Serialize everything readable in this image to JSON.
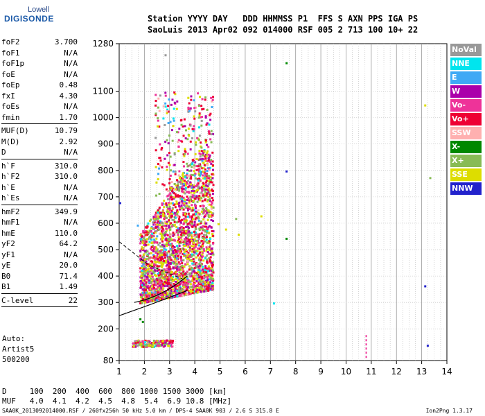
{
  "logo": {
    "top": "Lowell",
    "main": "DIGISONDE"
  },
  "header": {
    "row1": [
      "Station",
      "YYYY",
      "DAY",
      "DDD",
      "HHMMSS",
      "P1",
      "FFS",
      "S",
      "AXN",
      "PPS",
      "IGA",
      "PS"
    ],
    "row2": [
      "SaoLuis",
      "2013",
      "Apr02",
      "092",
      "014000",
      "RSF",
      "005",
      "2",
      "713",
      "100",
      "10+",
      "22"
    ]
  },
  "params": [
    {
      "k": "foF2",
      "v": "3.700"
    },
    {
      "k": "foF1",
      "v": "N/A"
    },
    {
      "k": "foF1p",
      "v": "N/A"
    },
    {
      "k": "foE",
      "v": "N/A"
    },
    {
      "k": "foEp",
      "v": "0.48"
    },
    {
      "k": "fxI",
      "v": "4.30"
    },
    {
      "k": "foEs",
      "v": "N/A"
    },
    {
      "k": "fmin",
      "v": "1.70"
    },
    {
      "sep": true
    },
    {
      "k": "MUF(D)",
      "v": "10.79"
    },
    {
      "k": "M(D)",
      "v": "2.92"
    },
    {
      "k": "D",
      "v": "N/A"
    },
    {
      "sep": true
    },
    {
      "k": "h`F",
      "v": "310.0"
    },
    {
      "k": "h`F2",
      "v": "310.0"
    },
    {
      "k": "h`E",
      "v": "N/A"
    },
    {
      "k": "h`Es",
      "v": "N/A"
    },
    {
      "sep": true
    },
    {
      "k": "hmF2",
      "v": "349.9"
    },
    {
      "k": "hmF1",
      "v": "N/A"
    },
    {
      "k": "hmE",
      "v": "110.0"
    },
    {
      "k": "yF2",
      "v": "64.2"
    },
    {
      "k": "yF1",
      "v": "N/A"
    },
    {
      "k": "yE",
      "v": "20.0"
    },
    {
      "k": "B0",
      "v": "71.4"
    },
    {
      "k": "B1",
      "v": "1.49"
    },
    {
      "sep": true
    },
    {
      "k": "C-level",
      "v": "22"
    },
    {
      "sep": true
    }
  ],
  "auto": {
    "line1": "Auto:",
    "line2": "Artist5",
    "line3": "500200"
  },
  "legend": [
    {
      "label": "NoVal",
      "color": "#999999"
    },
    {
      "label": "NNE",
      "color": "#00e5ee"
    },
    {
      "label": "E",
      "color": "#3fa9f5"
    },
    {
      "label": "W",
      "color": "#aa00aa"
    },
    {
      "label": "Vo-",
      "color": "#ee3399"
    },
    {
      "label": "Vo+",
      "color": "#ee0033"
    },
    {
      "label": "SSW",
      "color": "#ffb0b0"
    },
    {
      "label": "X-",
      "color": "#008800"
    },
    {
      "label": "X+",
      "color": "#88bb55"
    },
    {
      "label": "SSE",
      "color": "#dddd00"
    },
    {
      "label": "NNW",
      "color": "#2222cc"
    }
  ],
  "dtable": {
    "row1": "D     100  200  400  600  800 1000 1500 3000 [km]",
    "row2": "MUF   4.0  4.1  4.2  4.5  4.8  5.4  6.9 10.8 [MHz]"
  },
  "footer": {
    "left": "SAA0K_2013092014000.RSF / 260fx256h 50 kHz 5.0 km / DPS-4 SAA0K 903 / 2.6 S 315.8 E",
    "right": "Ion2Png 1.3.17"
  },
  "chart_data": {
    "type": "scatter",
    "x_ticks": [
      "1",
      "2",
      "3",
      "4",
      "5",
      "6",
      "7",
      "8",
      "9",
      "10",
      "11",
      "12",
      "13",
      "14"
    ],
    "y_ticks": [
      "80",
      "200",
      "300",
      "400",
      "500",
      "600",
      "700",
      "800",
      "900",
      "1000",
      "1100",
      "1280"
    ],
    "xlim": [
      1,
      14
    ],
    "ylim": [
      80,
      1280
    ],
    "grid": true
  }
}
